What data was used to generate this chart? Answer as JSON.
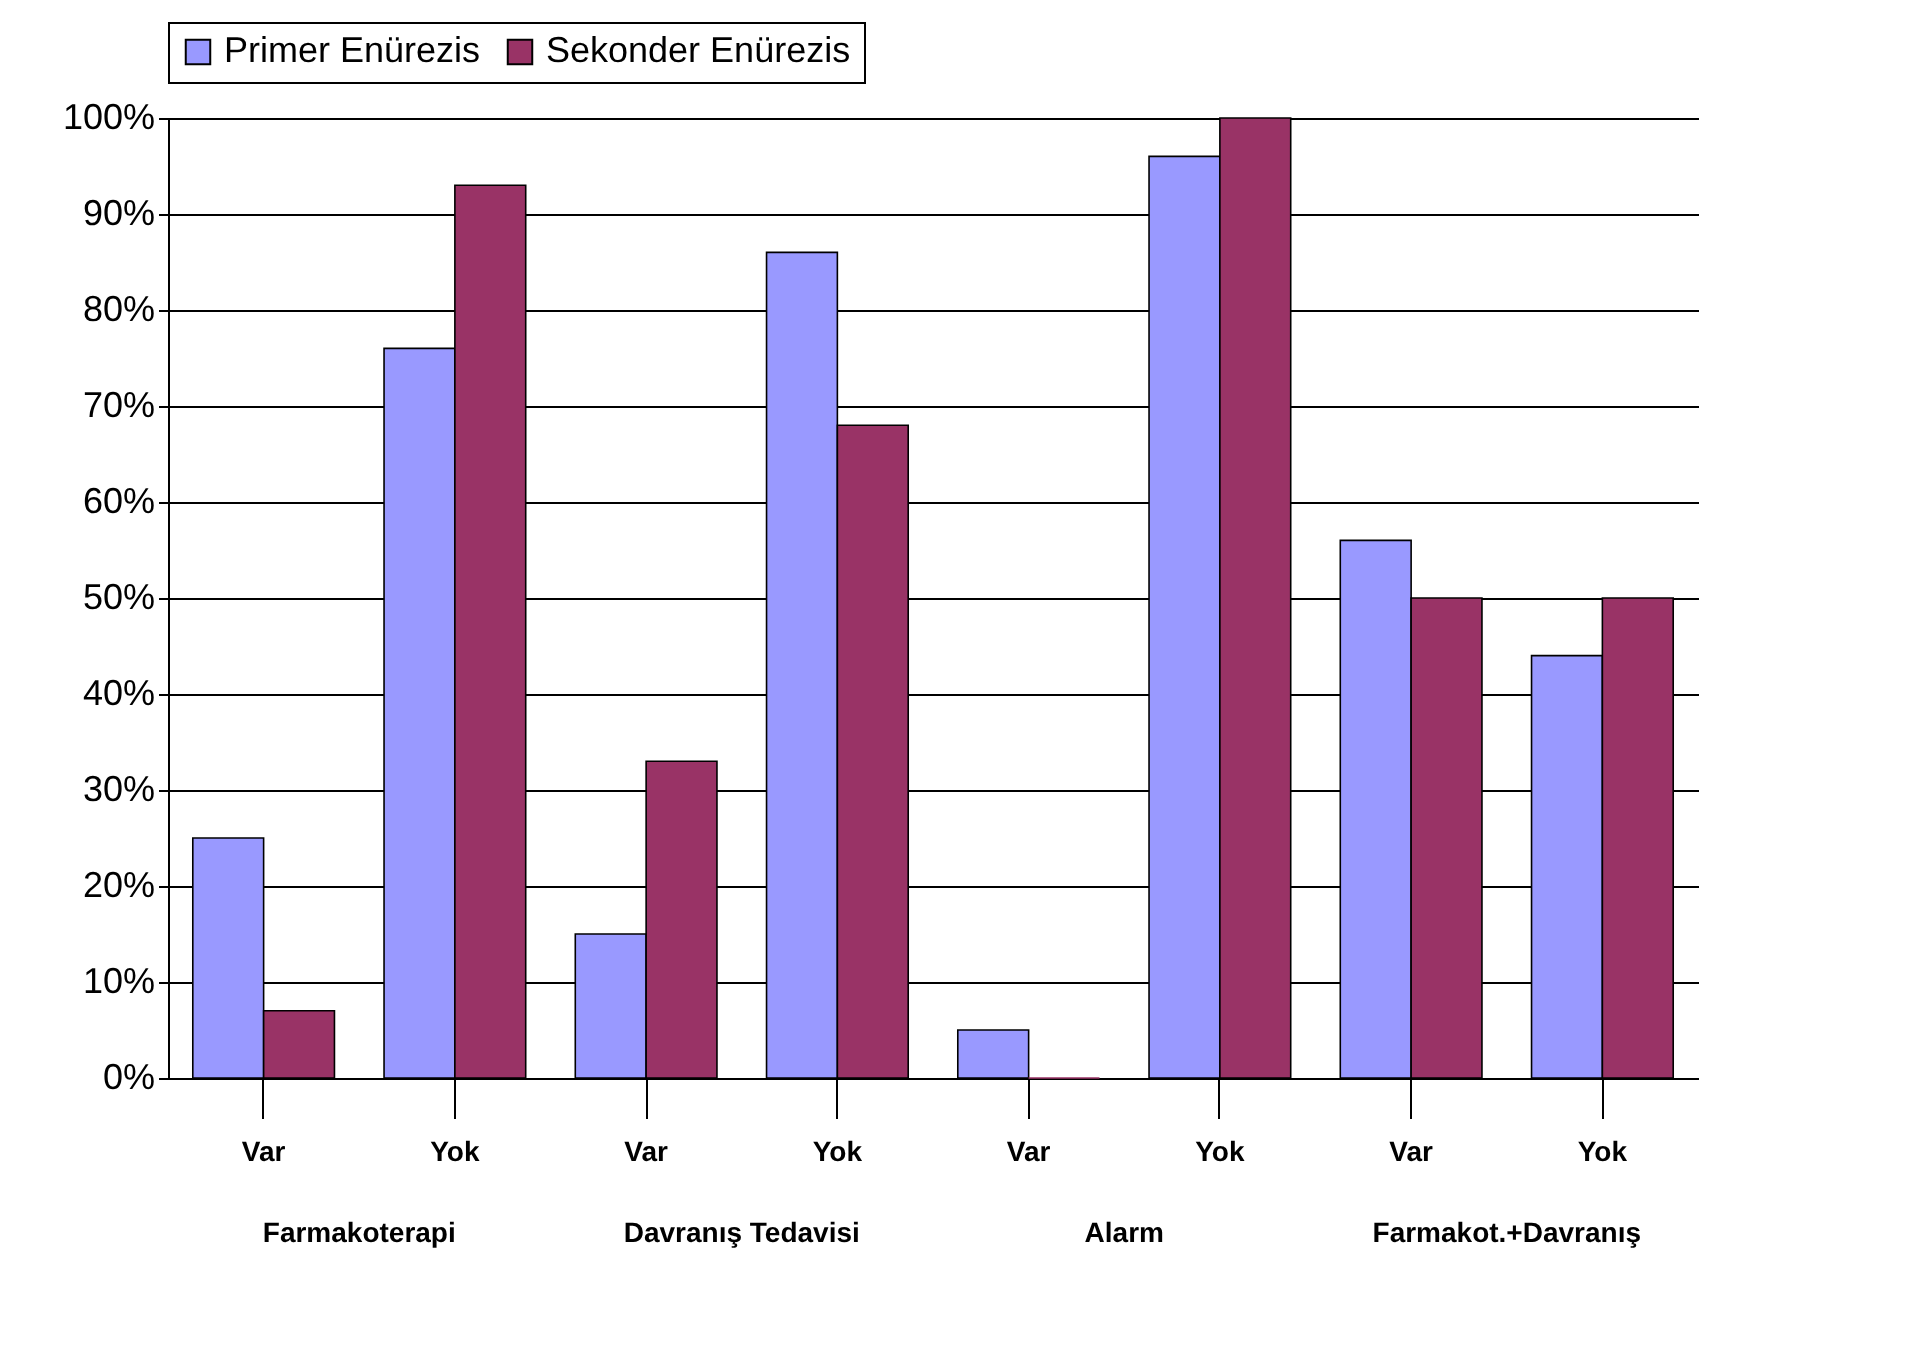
{
  "chart_data": {
    "type": "bar",
    "categories": [
      "Var",
      "Yok",
      "Var",
      "Yok",
      "Var",
      "Yok",
      "Var",
      "Yok"
    ],
    "series": [
      {
        "name": "Primer Enürezis",
        "color": "#9999ff",
        "values": [
          25,
          76,
          15,
          86,
          5,
          96,
          56,
          44
        ]
      },
      {
        "name": "Sekonder Enürezis",
        "color": "#993366",
        "values": [
          7,
          93,
          33,
          68,
          0,
          100,
          50,
          50
        ]
      }
    ],
    "annotations": [
      "Farmakoterapi",
      "Davranış Tedavisi",
      "Alarm",
      "Farmakot.+Davranış"
    ],
    "ylim": [
      0,
      100
    ],
    "yticks": [
      {
        "value": 0,
        "label": "0%"
      },
      {
        "value": 10,
        "label": "10%"
      },
      {
        "value": 20,
        "label": "20%"
      },
      {
        "value": 30,
        "label": "30%"
      },
      {
        "value": 40,
        "label": "40%"
      },
      {
        "value": 50,
        "label": "50%"
      },
      {
        "value": 60,
        "label": "60%"
      },
      {
        "value": 70,
        "label": "70%"
      },
      {
        "value": 80,
        "label": "80%"
      },
      {
        "value": 90,
        "label": "90%"
      },
      {
        "value": 100,
        "label": "100%"
      }
    ],
    "grid": "y",
    "legend": "top"
  }
}
